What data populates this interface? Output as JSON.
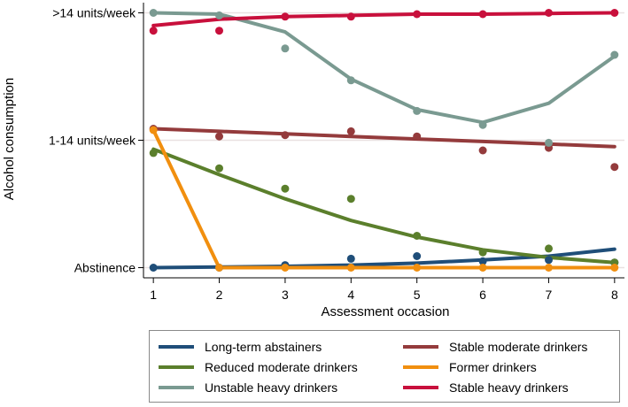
{
  "chart_data": {
    "type": "line",
    "xlabel": "Assessment occasion",
    "ylabel": "Alcohol consumption",
    "x": [
      1,
      2,
      3,
      4,
      5,
      6,
      7,
      8
    ],
    "xlim": [
      0.85,
      8.15
    ],
    "ylim": [
      -0.08,
      2.08
    ],
    "y_ticks": [
      {
        "value": 0,
        "label": "Abstinence"
      },
      {
        "value": 1,
        "label": "1-14 units/week"
      },
      {
        "value": 2,
        "label": ">14 units/week"
      }
    ],
    "series": [
      {
        "name": "Long-term abstainers",
        "color": "#1f4e79",
        "line": [
          0,
          0.005,
          0.01,
          0.02,
          0.035,
          0.06,
          0.09,
          0.145
        ],
        "points": [
          0,
          0,
          0.02,
          0.07,
          0.09,
          0.05,
          0.06,
          0.04
        ]
      },
      {
        "name": "Stable moderate drinkers",
        "color": "#943b3c",
        "line": [
          1.09,
          1.07,
          1.05,
          1.03,
          1.01,
          0.99,
          0.97,
          0.95
        ],
        "points": [
          1.09,
          1.03,
          1.04,
          1.07,
          1.03,
          0.92,
          0.94,
          0.79
        ]
      },
      {
        "name": "Reduced moderate drinkers",
        "color": "#5b7f2c",
        "line": [
          0.93,
          0.73,
          0.54,
          0.37,
          0.24,
          0.14,
          0.08,
          0.04
        ],
        "points": [
          0.9,
          0.78,
          0.62,
          0.54,
          0.25,
          0.12,
          0.15,
          0.04
        ]
      },
      {
        "name": "Former drinkers",
        "color": "#f18f0f",
        "line": [
          1.08,
          0,
          0,
          0,
          0,
          0,
          0,
          0
        ],
        "points": [
          1.08,
          0,
          0,
          0,
          0,
          0,
          0,
          0
        ]
      },
      {
        "name": "Unstable heavy drinkers",
        "color": "#7a9a91",
        "line": [
          2,
          1.99,
          1.85,
          1.48,
          1.24,
          1.14,
          1.29,
          1.66
        ],
        "points": [
          2,
          1.98,
          1.72,
          1.47,
          1.23,
          1.12,
          0.98,
          1.67
        ]
      },
      {
        "name": "Stable heavy drinkers",
        "color": "#c8103c",
        "line": [
          1.9,
          1.95,
          1.97,
          1.98,
          1.99,
          1.99,
          1.995,
          2
        ],
        "points": [
          1.86,
          1.86,
          1.97,
          1.97,
          1.99,
          1.99,
          2,
          2
        ]
      }
    ],
    "legend_order": [
      "Long-term abstainers",
      "Stable moderate drinkers",
      "Reduced moderate drinkers",
      "Former drinkers",
      "Unstable heavy drinkers",
      "Stable heavy drinkers"
    ],
    "legend_position": "bottom",
    "grid": true
  }
}
